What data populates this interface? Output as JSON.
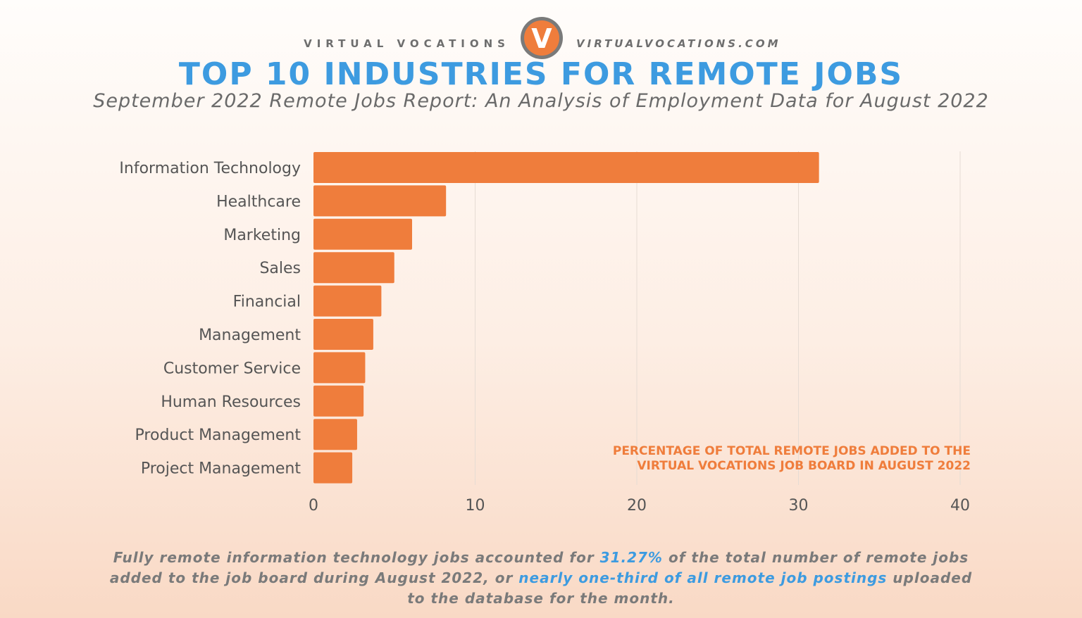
{
  "brand": {
    "left_text": "VIRTUAL VOCATIONS",
    "right_text": "VIRTUALVOCATIONS.COM",
    "logo_letter": "V"
  },
  "title": "TOP 10 INDUSTRIES FOR REMOTE JOBS",
  "subtitle": "September 2022 Remote Jobs Report: An Analysis of Employment Data for August 2022",
  "chart_data": {
    "type": "bar",
    "orientation": "horizontal",
    "categories": [
      "Information Technology",
      "Healthcare",
      "Marketing",
      "Sales",
      "Financial",
      "Management",
      "Customer Service",
      "Human Resources",
      "Product Management",
      "Project Management"
    ],
    "values": [
      31.27,
      8.2,
      6.1,
      5.0,
      4.2,
      3.7,
      3.2,
      3.1,
      2.7,
      2.4
    ],
    "xlim": [
      0,
      40
    ],
    "xticks": [
      0,
      10,
      20,
      30,
      40
    ],
    "grid": true,
    "axis_note_lines": [
      "PERCENTAGE OF TOTAL REMOTE JOBS ADDED TO THE",
      "VIRTUAL VOCATIONS JOB BOARD IN AUGUST 2022"
    ],
    "bar_color": "#ef7d3c",
    "grid_color": "#e6dcd4"
  },
  "footnote": {
    "part1": "Fully remote information technology jobs accounted for ",
    "highlight1": "31.27%",
    "part2": " of the total number of remote jobs added to the job board during August 2022, or ",
    "highlight2": "nearly one-third of all remote job postings",
    "part3": " uploaded to the database for the month."
  }
}
